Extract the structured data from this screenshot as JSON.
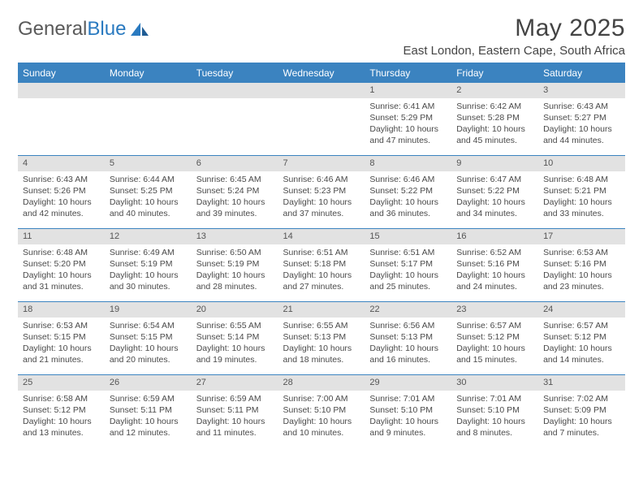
{
  "logo": {
    "text1": "General",
    "text2": "Blue"
  },
  "title": "May 2025",
  "location": "East London, Eastern Cape, South Africa",
  "colors": {
    "header_bg": "#3b83c0",
    "header_text": "#ffffff",
    "daynum_bg": "#e2e2e2",
    "border": "#3b83c0",
    "body_text": "#4a4a4a",
    "title_text": "#444444"
  },
  "weekdays": [
    "Sunday",
    "Monday",
    "Tuesday",
    "Wednesday",
    "Thursday",
    "Friday",
    "Saturday"
  ],
  "weeks": [
    [
      null,
      null,
      null,
      null,
      {
        "n": "1",
        "sr": "6:41 AM",
        "ss": "5:29 PM",
        "dl": "10 hours and 47 minutes."
      },
      {
        "n": "2",
        "sr": "6:42 AM",
        "ss": "5:28 PM",
        "dl": "10 hours and 45 minutes."
      },
      {
        "n": "3",
        "sr": "6:43 AM",
        "ss": "5:27 PM",
        "dl": "10 hours and 44 minutes."
      }
    ],
    [
      {
        "n": "4",
        "sr": "6:43 AM",
        "ss": "5:26 PM",
        "dl": "10 hours and 42 minutes."
      },
      {
        "n": "5",
        "sr": "6:44 AM",
        "ss": "5:25 PM",
        "dl": "10 hours and 40 minutes."
      },
      {
        "n": "6",
        "sr": "6:45 AM",
        "ss": "5:24 PM",
        "dl": "10 hours and 39 minutes."
      },
      {
        "n": "7",
        "sr": "6:46 AM",
        "ss": "5:23 PM",
        "dl": "10 hours and 37 minutes."
      },
      {
        "n": "8",
        "sr": "6:46 AM",
        "ss": "5:22 PM",
        "dl": "10 hours and 36 minutes."
      },
      {
        "n": "9",
        "sr": "6:47 AM",
        "ss": "5:22 PM",
        "dl": "10 hours and 34 minutes."
      },
      {
        "n": "10",
        "sr": "6:48 AM",
        "ss": "5:21 PM",
        "dl": "10 hours and 33 minutes."
      }
    ],
    [
      {
        "n": "11",
        "sr": "6:48 AM",
        "ss": "5:20 PM",
        "dl": "10 hours and 31 minutes."
      },
      {
        "n": "12",
        "sr": "6:49 AM",
        "ss": "5:19 PM",
        "dl": "10 hours and 30 minutes."
      },
      {
        "n": "13",
        "sr": "6:50 AM",
        "ss": "5:19 PM",
        "dl": "10 hours and 28 minutes."
      },
      {
        "n": "14",
        "sr": "6:51 AM",
        "ss": "5:18 PM",
        "dl": "10 hours and 27 minutes."
      },
      {
        "n": "15",
        "sr": "6:51 AM",
        "ss": "5:17 PM",
        "dl": "10 hours and 25 minutes."
      },
      {
        "n": "16",
        "sr": "6:52 AM",
        "ss": "5:16 PM",
        "dl": "10 hours and 24 minutes."
      },
      {
        "n": "17",
        "sr": "6:53 AM",
        "ss": "5:16 PM",
        "dl": "10 hours and 23 minutes."
      }
    ],
    [
      {
        "n": "18",
        "sr": "6:53 AM",
        "ss": "5:15 PM",
        "dl": "10 hours and 21 minutes."
      },
      {
        "n": "19",
        "sr": "6:54 AM",
        "ss": "5:15 PM",
        "dl": "10 hours and 20 minutes."
      },
      {
        "n": "20",
        "sr": "6:55 AM",
        "ss": "5:14 PM",
        "dl": "10 hours and 19 minutes."
      },
      {
        "n": "21",
        "sr": "6:55 AM",
        "ss": "5:13 PM",
        "dl": "10 hours and 18 minutes."
      },
      {
        "n": "22",
        "sr": "6:56 AM",
        "ss": "5:13 PM",
        "dl": "10 hours and 16 minutes."
      },
      {
        "n": "23",
        "sr": "6:57 AM",
        "ss": "5:12 PM",
        "dl": "10 hours and 15 minutes."
      },
      {
        "n": "24",
        "sr": "6:57 AM",
        "ss": "5:12 PM",
        "dl": "10 hours and 14 minutes."
      }
    ],
    [
      {
        "n": "25",
        "sr": "6:58 AM",
        "ss": "5:12 PM",
        "dl": "10 hours and 13 minutes."
      },
      {
        "n": "26",
        "sr": "6:59 AM",
        "ss": "5:11 PM",
        "dl": "10 hours and 12 minutes."
      },
      {
        "n": "27",
        "sr": "6:59 AM",
        "ss": "5:11 PM",
        "dl": "10 hours and 11 minutes."
      },
      {
        "n": "28",
        "sr": "7:00 AM",
        "ss": "5:10 PM",
        "dl": "10 hours and 10 minutes."
      },
      {
        "n": "29",
        "sr": "7:01 AM",
        "ss": "5:10 PM",
        "dl": "10 hours and 9 minutes."
      },
      {
        "n": "30",
        "sr": "7:01 AM",
        "ss": "5:10 PM",
        "dl": "10 hours and 8 minutes."
      },
      {
        "n": "31",
        "sr": "7:02 AM",
        "ss": "5:09 PM",
        "dl": "10 hours and 7 minutes."
      }
    ]
  ],
  "labels": {
    "sunrise": "Sunrise:",
    "sunset": "Sunset:",
    "daylight": "Daylight:"
  }
}
